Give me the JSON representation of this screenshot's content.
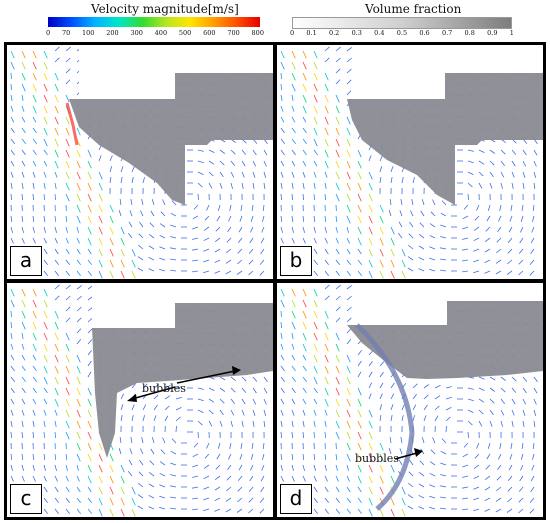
{
  "legend_velocity": {
    "title": "Velocity magnitude[m/s]",
    "ticks": [
      "0",
      "70",
      "100",
      "200",
      "300",
      "400",
      "500",
      "600",
      "700",
      "800"
    ]
  },
  "legend_volume": {
    "title": "Volume fraction",
    "ticks": [
      "0",
      "0.1",
      "0.2",
      "0.3",
      "0.4",
      "0.5",
      "0.6",
      "0.7",
      "0.8",
      "0.9",
      "1"
    ]
  },
  "panels": [
    {
      "label": "a"
    },
    {
      "label": "b"
    },
    {
      "label": "c",
      "annotation": "bubbles"
    },
    {
      "label": "d",
      "annotation": "bubbles"
    }
  ],
  "colors": {
    "gas_fill": "#8c8c96",
    "vector_slow": "#3b6fe8",
    "jet_colors": [
      "#1e90ff",
      "#00c8c8",
      "#00d27a",
      "#b4dc1e",
      "#ffd200",
      "#ff8c00",
      "#ff3c3c"
    ]
  }
}
